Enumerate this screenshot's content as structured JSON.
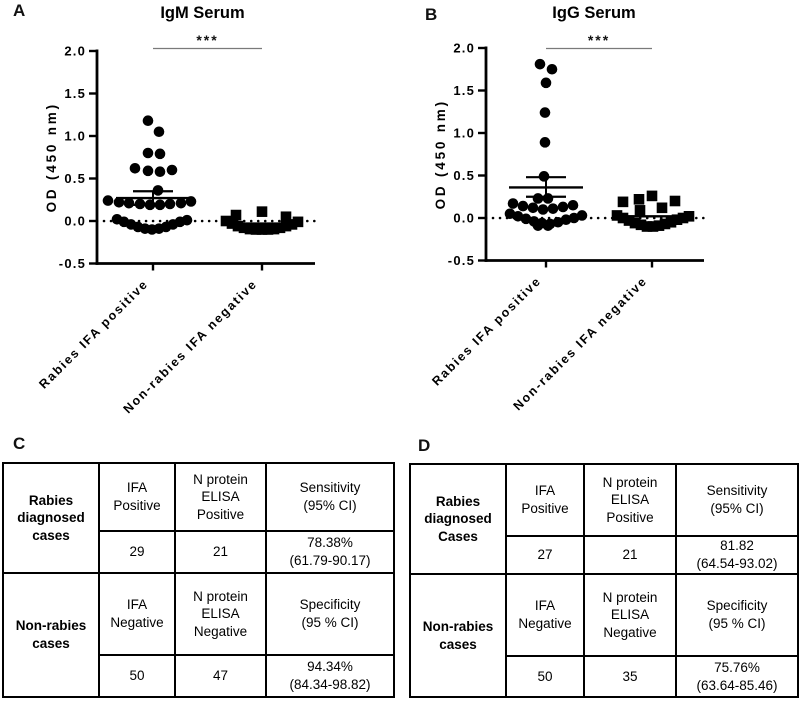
{
  "panel_labels": {
    "a": "A",
    "b": "B",
    "c": "C",
    "d": "D"
  },
  "chart_data": [
    {
      "type": "scatter",
      "panel": "A",
      "title": "IgM Serum",
      "ylabel": "OD (450 nm)",
      "ylim": [
        -0.5,
        2.0
      ],
      "yticks": [
        2.0,
        1.5,
        1.0,
        0.5,
        0.0,
        -0.5
      ],
      "baseline_od": 0.0,
      "grid": false,
      "significance": "***",
      "categories": [
        "Rabies IFA positive",
        "Non-rabies IFA negative"
      ],
      "groups": [
        {
          "label": "Rabies IFA positive",
          "marker": "circle",
          "mean": 0.27,
          "sem_upper": 0.35,
          "sem_lower": 0.19,
          "points": [
            [
              -5,
              1.18
            ],
            [
              6,
              1.05
            ],
            [
              -5,
              0.8
            ],
            [
              7,
              0.79
            ],
            [
              -18,
              0.62
            ],
            [
              -5,
              0.59
            ],
            [
              7,
              0.58
            ],
            [
              19,
              0.6
            ],
            [
              5,
              0.36
            ],
            [
              -45,
              0.24
            ],
            [
              -34,
              0.22
            ],
            [
              -24,
              0.21
            ],
            [
              -13,
              0.2
            ],
            [
              -3,
              0.19
            ],
            [
              7,
              0.19
            ],
            [
              17,
              0.2
            ],
            [
              28,
              0.21
            ],
            [
              38,
              0.23
            ],
            [
              -36,
              0.02
            ],
            [
              -29,
              -0.01
            ],
            [
              -22,
              -0.04
            ],
            [
              -15,
              -0.07
            ],
            [
              -8,
              -0.09
            ],
            [
              -1,
              -0.1
            ],
            [
              6,
              -0.09
            ],
            [
              13,
              -0.07
            ],
            [
              20,
              -0.04
            ],
            [
              27,
              -0.01
            ],
            [
              34,
              0.01
            ]
          ]
        },
        {
          "label": "Non-rabies IFA negative",
          "marker": "square",
          "mean": -0.03,
          "points": [
            [
              0,
              0.11
            ],
            [
              -26,
              0.07
            ],
            [
              24,
              0.05
            ],
            [
              -36,
              0.0
            ],
            [
              -30,
              -0.03
            ],
            [
              -24,
              -0.06
            ],
            [
              -18,
              -0.08
            ],
            [
              -12,
              -0.095
            ],
            [
              -6,
              -0.1
            ],
            [
              0,
              -0.1
            ],
            [
              6,
              -0.1
            ],
            [
              12,
              -0.095
            ],
            [
              18,
              -0.08
            ],
            [
              24,
              -0.06
            ],
            [
              30,
              -0.04
            ],
            [
              36,
              -0.01
            ]
          ]
        }
      ]
    },
    {
      "type": "scatter",
      "panel": "B",
      "title": "IgG Serum",
      "ylabel": "OD (450 nm)",
      "ylim": [
        -0.5,
        2.0
      ],
      "yticks": [
        2.0,
        1.5,
        1.0,
        0.5,
        0.0,
        -0.5
      ],
      "baseline_od": 0.0,
      "grid": false,
      "significance": "***",
      "categories": [
        "Rabies IFA positive",
        "Non-rabies IFA negative"
      ],
      "groups": [
        {
          "label": "Rabies IFA positive",
          "marker": "circle",
          "mean": 0.36,
          "sem_upper": 0.48,
          "sem_lower": 0.25,
          "points": [
            [
              -6,
              1.81
            ],
            [
              6,
              1.75
            ],
            [
              0,
              1.59
            ],
            [
              -1,
              1.24
            ],
            [
              -1,
              0.89
            ],
            [
              -2,
              0.49
            ],
            [
              -8,
              0.23
            ],
            [
              2,
              0.23
            ],
            [
              -33,
              0.17
            ],
            [
              -23,
              0.14
            ],
            [
              -13,
              0.12
            ],
            [
              -3,
              0.1
            ],
            [
              7,
              0.11
            ],
            [
              17,
              0.13
            ],
            [
              27,
              0.15
            ],
            [
              -36,
              0.05
            ],
            [
              -28,
              0.02
            ],
            [
              -20,
              -0.01
            ],
            [
              -12,
              -0.04
            ],
            [
              -4,
              -0.06
            ],
            [
              4,
              -0.07
            ],
            [
              12,
              -0.05
            ],
            [
              20,
              -0.02
            ],
            [
              28,
              0.0
            ],
            [
              36,
              0.03
            ],
            [
              -8,
              -0.09
            ],
            [
              2,
              -0.09
            ]
          ]
        },
        {
          "label": "Non-rabies IFA negative",
          "marker": "square",
          "mean": 0.02,
          "points": [
            [
              -29,
              0.19
            ],
            [
              -13,
              0.22
            ],
            [
              0,
              0.26
            ],
            [
              23,
              0.2
            ],
            [
              10,
              0.12
            ],
            [
              -12,
              0.09
            ],
            [
              -35,
              0.03
            ],
            [
              -29,
              0.0
            ],
            [
              -23,
              -0.03
            ],
            [
              -17,
              -0.06
            ],
            [
              -11,
              -0.08
            ],
            [
              -5,
              -0.1
            ],
            [
              1,
              -0.1
            ],
            [
              7,
              -0.09
            ],
            [
              13,
              -0.07
            ],
            [
              19,
              -0.05
            ],
            [
              25,
              -0.02
            ],
            [
              31,
              0.0
            ],
            [
              37,
              0.02
            ]
          ]
        }
      ]
    }
  ],
  "tables": [
    {
      "panel": "C",
      "row_groups": [
        {
          "row_header": "Rabies\ndiagnosed\ncases",
          "col_headers": [
            "IFA\nPositive",
            "N protein\nELISA\nPositive",
            "Sensitivity\n(95% CI)"
          ],
          "values": [
            "29",
            "21",
            "78.38%\n(61.79-90.17)"
          ]
        },
        {
          "row_header": "Non-rabies\ncases",
          "col_headers": [
            "IFA\nNegative",
            "N protein\nELISA\nNegative",
            "Specificity\n(95 % CI)"
          ],
          "values": [
            "50",
            "47",
            "94.34%\n(84.34-98.82)"
          ]
        }
      ]
    },
    {
      "panel": "D",
      "row_groups": [
        {
          "row_header": "Rabies\ndiagnosed\nCases",
          "col_headers": [
            "IFA\nPositive",
            "N protein\nELISA\nPositive",
            "Sensitivity\n(95% CI)"
          ],
          "values": [
            "27",
            "21",
            "81.82\n(64.54-93.02)"
          ]
        },
        {
          "row_header": "Non-rabies\ncases",
          "col_headers": [
            "IFA\nNegative",
            "N protein\nELISA\nNegative",
            "Specificity\n(95 % CI)"
          ],
          "values": [
            "50",
            "35",
            "75.76%\n(63.64-85.46)"
          ]
        }
      ]
    }
  ]
}
